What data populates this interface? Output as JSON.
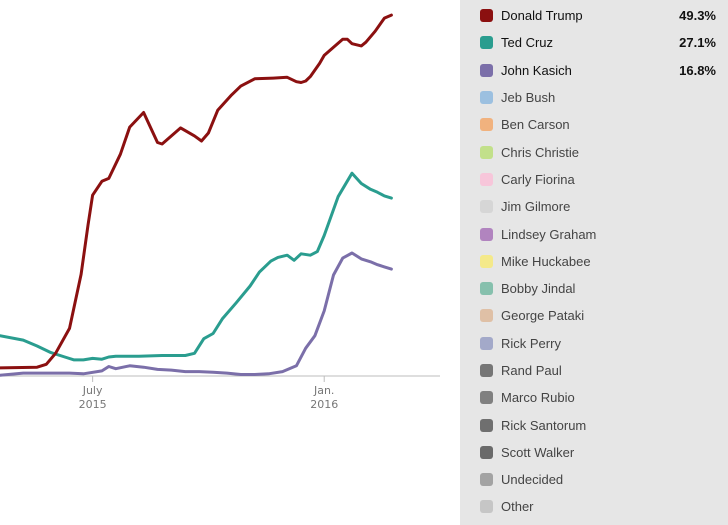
{
  "chart_data": {
    "type": "line",
    "title": "",
    "xlabel": "",
    "ylabel": "",
    "x_domain": [
      2015.3,
      2016.25
    ],
    "ylim": [
      0,
      50
    ],
    "x_ticks": [
      {
        "x": 2015.5,
        "line1": "July",
        "line2": "2015"
      },
      {
        "x": 2016.0,
        "line1": "Jan.",
        "line2": "2016"
      }
    ],
    "series": [
      {
        "name": "Donald Trump",
        "color": "#8b1010",
        "points": [
          [
            2015.3,
            1.1
          ],
          [
            2015.38,
            1.2
          ],
          [
            2015.4,
            1.6
          ],
          [
            2015.42,
            3.1
          ],
          [
            2015.45,
            6.5
          ],
          [
            2015.475,
            13.9
          ],
          [
            2015.49,
            20.6
          ],
          [
            2015.5,
            24.7
          ],
          [
            2015.52,
            26.6
          ],
          [
            2015.535,
            27.0
          ],
          [
            2015.56,
            30.3
          ],
          [
            2015.58,
            34.0
          ],
          [
            2015.61,
            36.0
          ],
          [
            2015.64,
            31.9
          ],
          [
            2015.65,
            31.7
          ],
          [
            2015.69,
            33.9
          ],
          [
            2015.72,
            32.8
          ],
          [
            2015.735,
            32.1
          ],
          [
            2015.75,
            33.2
          ],
          [
            2015.77,
            36.3
          ],
          [
            2015.8,
            38.4
          ],
          [
            2015.82,
            39.6
          ],
          [
            2015.85,
            40.6
          ],
          [
            2015.89,
            40.7
          ],
          [
            2015.92,
            40.8
          ],
          [
            2015.94,
            40.2
          ],
          [
            2015.95,
            40.1
          ],
          [
            2015.96,
            40.3
          ],
          [
            2015.97,
            40.9
          ],
          [
            2015.99,
            42.7
          ],
          [
            2016.0,
            43.8
          ],
          [
            2016.02,
            44.9
          ],
          [
            2016.04,
            46.0
          ],
          [
            2016.05,
            46.0
          ],
          [
            2016.06,
            45.4
          ],
          [
            2016.08,
            45.1
          ],
          [
            2016.09,
            45.6
          ],
          [
            2016.11,
            47.1
          ],
          [
            2016.13,
            48.9
          ],
          [
            2016.145,
            49.3
          ]
        ]
      },
      {
        "name": "Ted Cruz",
        "color": "#2a9d8f",
        "points": [
          [
            2015.3,
            5.5
          ],
          [
            2015.35,
            4.9
          ],
          [
            2015.38,
            4.1
          ],
          [
            2015.41,
            3.2
          ],
          [
            2015.44,
            2.6
          ],
          [
            2015.46,
            2.2
          ],
          [
            2015.48,
            2.2
          ],
          [
            2015.5,
            2.4
          ],
          [
            2015.52,
            2.3
          ],
          [
            2015.535,
            2.6
          ],
          [
            2015.55,
            2.7
          ],
          [
            2015.6,
            2.7
          ],
          [
            2015.65,
            2.8
          ],
          [
            2015.7,
            2.8
          ],
          [
            2015.72,
            3.1
          ],
          [
            2015.74,
            5.1
          ],
          [
            2015.76,
            5.8
          ],
          [
            2015.78,
            7.8
          ],
          [
            2015.81,
            10.0
          ],
          [
            2015.84,
            12.3
          ],
          [
            2015.86,
            14.2
          ],
          [
            2015.885,
            15.7
          ],
          [
            2015.9,
            16.2
          ],
          [
            2015.92,
            16.5
          ],
          [
            2015.935,
            15.8
          ],
          [
            2015.95,
            16.7
          ],
          [
            2015.97,
            16.5
          ],
          [
            2015.985,
            17.0
          ],
          [
            2016.0,
            19.2
          ],
          [
            2016.03,
            24.5
          ],
          [
            2016.06,
            27.7
          ],
          [
            2016.08,
            26.3
          ],
          [
            2016.1,
            25.5
          ],
          [
            2016.115,
            25.1
          ],
          [
            2016.13,
            24.6
          ],
          [
            2016.145,
            24.3
          ]
        ]
      },
      {
        "name": "John Kasich",
        "color": "#7b6fa9",
        "points": [
          [
            2015.3,
            0.1
          ],
          [
            2015.35,
            0.4
          ],
          [
            2015.45,
            0.4
          ],
          [
            2015.48,
            0.3
          ],
          [
            2015.52,
            0.7
          ],
          [
            2015.535,
            1.3
          ],
          [
            2015.55,
            1.0
          ],
          [
            2015.58,
            1.4
          ],
          [
            2015.61,
            1.2
          ],
          [
            2015.64,
            0.9
          ],
          [
            2015.67,
            0.8
          ],
          [
            2015.7,
            0.6
          ],
          [
            2015.73,
            0.6
          ],
          [
            2015.76,
            0.5
          ],
          [
            2015.79,
            0.4
          ],
          [
            2015.82,
            0.2
          ],
          [
            2015.85,
            0.2
          ],
          [
            2015.88,
            0.3
          ],
          [
            2015.91,
            0.6
          ],
          [
            2015.94,
            1.4
          ],
          [
            2015.96,
            3.8
          ],
          [
            2015.98,
            5.5
          ],
          [
            2016.0,
            8.9
          ],
          [
            2016.02,
            13.8
          ],
          [
            2016.04,
            16.1
          ],
          [
            2016.06,
            16.8
          ],
          [
            2016.08,
            16.0
          ],
          [
            2016.1,
            15.6
          ],
          [
            2016.115,
            15.2
          ],
          [
            2016.13,
            14.9
          ],
          [
            2016.145,
            14.6
          ]
        ]
      }
    ]
  },
  "legend": {
    "entries": [
      {
        "name": "Donald Trump",
        "color": "#8b1010",
        "pct": "49.3%"
      },
      {
        "name": "Ted Cruz",
        "color": "#2a9d8f",
        "pct": "27.1%"
      },
      {
        "name": "John Kasich",
        "color": "#7b6fa9",
        "pct": "16.8%"
      },
      {
        "name": "Jeb Bush",
        "color": "#9cc0e0"
      },
      {
        "name": "Ben Carson",
        "color": "#f1b27e"
      },
      {
        "name": "Chris Christie",
        "color": "#c2e08a"
      },
      {
        "name": "Carly Fiorina",
        "color": "#f7c6da"
      },
      {
        "name": "Jim Gilmore",
        "color": "#d6d6d6"
      },
      {
        "name": "Lindsey Graham",
        "color": "#b184bf"
      },
      {
        "name": "Mike Huckabee",
        "color": "#f4e98a"
      },
      {
        "name": "Bobby Jindal",
        "color": "#86c0ad"
      },
      {
        "name": "George Pataki",
        "color": "#dfc0a6"
      },
      {
        "name": "Rick Perry",
        "color": "#a3a9c9"
      },
      {
        "name": "Rand Paul",
        "color": "#767676"
      },
      {
        "name": "Marco Rubio",
        "color": "#808080"
      },
      {
        "name": "Rick Santorum",
        "color": "#6f6f6f"
      },
      {
        "name": "Scott Walker",
        "color": "#6a6a6a"
      },
      {
        "name": "Undecided",
        "color": "#a3a3a3"
      },
      {
        "name": "Other",
        "color": "#c6c6c6"
      }
    ]
  }
}
